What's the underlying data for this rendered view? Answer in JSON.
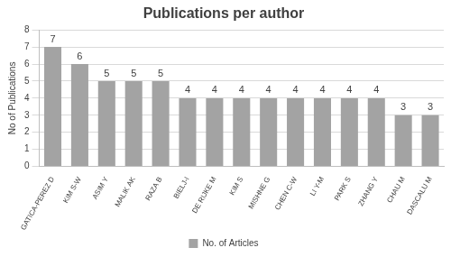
{
  "chart_data": {
    "type": "bar",
    "title": "Publications per author",
    "y_label": "No of Publications",
    "categories": [
      "GATICA-PEREZ D",
      "KIM S-W",
      "ASIM Y",
      "MALIK AK",
      "RAZA B",
      "BIELJ-I",
      "DE RIJKE M",
      "KIM S",
      "MISHNE G",
      "CHEN C-W",
      "LI Y-M",
      "PARK S",
      "ZHANG Y",
      "CHAU M",
      "DASCALU M"
    ],
    "series": [
      {
        "name": "No. of Articles",
        "color": "#a3a3a3",
        "values": [
          7,
          6,
          5,
          5,
          5,
          4,
          4,
          4,
          4,
          4,
          4,
          4,
          4,
          3,
          3
        ]
      }
    ],
    "ylim": [
      0,
      8
    ],
    "yticks": [
      0,
      1,
      2,
      3,
      4,
      5,
      6,
      7,
      8
    ],
    "grid": true,
    "legend": "bottom",
    "data_labels": true
  }
}
